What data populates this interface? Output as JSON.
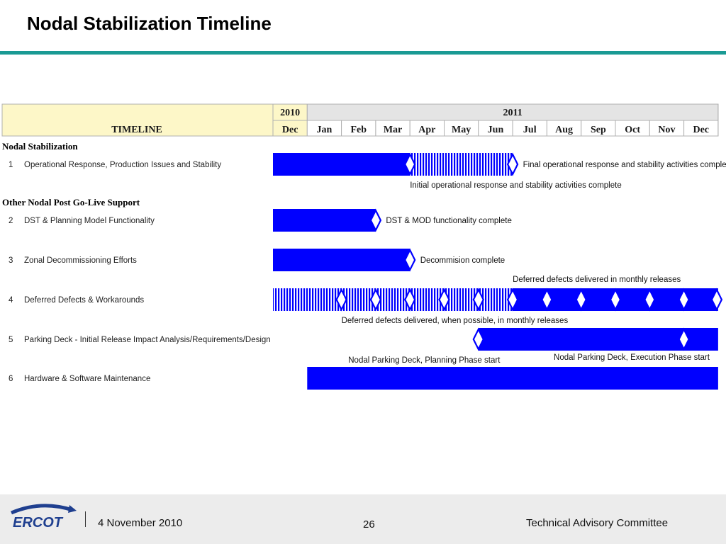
{
  "title": "Nodal Stabilization Timeline",
  "header": {
    "label": "TIMELINE",
    "years": [
      {
        "label": "2010",
        "start": 0,
        "span": 1
      },
      {
        "label": "2011",
        "start": 1,
        "span": 12
      }
    ],
    "months": [
      "Dec",
      "Jan",
      "Feb",
      "Mar",
      "Apr",
      "May",
      "Jun",
      "Jul",
      "Aug",
      "Sep",
      "Oct",
      "Nov",
      "Dec"
    ]
  },
  "colors": {
    "bar": "#0000ff",
    "header_fill": "#fdf7c8",
    "header_gray": "#e4e4e4",
    "grid": "#b0b0b0",
    "teal": "#1a9a94"
  },
  "sections": [
    {
      "label": "Nodal Stabilization",
      "tasks": [
        {
          "num": "1",
          "name": "Operational Response, Production Issues and Stability",
          "bars": [
            {
              "start": 0,
              "end": 4,
              "style": "solid"
            },
            {
              "start": 4,
              "end": 7,
              "style": "hatched"
            }
          ],
          "milestones": [
            4,
            7
          ],
          "annotations": [
            {
              "text": "Final operational response and stability activities complete",
              "month": 7.3,
              "pos": "right"
            },
            {
              "text": "Initial operational response and stability activities complete",
              "month": 4.0,
              "pos": "below"
            }
          ]
        }
      ]
    },
    {
      "label": "Other Nodal Post Go-Live Support",
      "tasks": [
        {
          "num": "2",
          "name": "DST & Planning Model Functionality",
          "bars": [
            {
              "start": 0,
              "end": 3,
              "style": "solid"
            }
          ],
          "milestones": [
            3
          ],
          "annotations": [
            {
              "text": "DST & MOD functionality complete",
              "month": 3.3,
              "pos": "right"
            }
          ]
        },
        {
          "num": "3",
          "name": "Zonal Decommissioning Efforts",
          "bars": [
            {
              "start": 0,
              "end": 4,
              "style": "solid"
            }
          ],
          "milestones": [
            4
          ],
          "annotations": [
            {
              "text": "Decommision complete",
              "month": 4.3,
              "pos": "right"
            }
          ]
        },
        {
          "num": "4",
          "name": "Deferred Defects & Workarounds",
          "bars": [
            {
              "start": 0,
              "end": 7,
              "style": "hatched"
            },
            {
              "start": 7,
              "end": 13,
              "style": "solid"
            }
          ],
          "milestones": [
            2,
            3,
            4,
            5,
            6,
            7,
            8,
            9,
            10,
            11,
            12,
            13
          ],
          "annotations": [
            {
              "text": "Deferred defects delivered in monthly releases",
              "month": 7.0,
              "pos": "above"
            },
            {
              "text": "Deferred defects delivered, when possible, in monthly releases",
              "month": 2.0,
              "pos": "below"
            }
          ]
        },
        {
          "num": "5",
          "name": "Parking Deck - Initial Release Impact Analysis/Requirements/Design",
          "bars": [
            {
              "start": 6,
              "end": 13,
              "style": "solid"
            }
          ],
          "milestones": [
            6,
            12
          ],
          "annotations": [
            {
              "text": "Nodal Parking Deck, Planning Phase start",
              "month": 2.2,
              "pos": "below"
            },
            {
              "text": "Nodal Parking Deck, Execution Phase start",
              "month": 8.2,
              "pos": "below2"
            }
          ]
        },
        {
          "num": "6",
          "name": "Hardware & Software Maintenance",
          "bars": [
            {
              "start": 1,
              "end": 13,
              "style": "solid"
            }
          ],
          "milestones": [],
          "annotations": []
        }
      ]
    }
  ],
  "footer": {
    "logo_text": "ERCOT",
    "date": "4 November 2010",
    "page": "26",
    "org": "Technical Advisory Committee"
  }
}
